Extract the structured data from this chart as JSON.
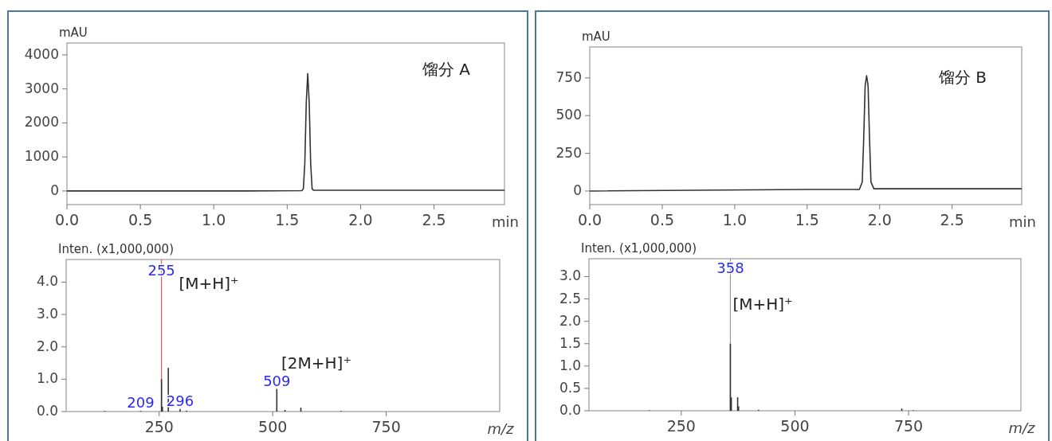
{
  "chart_data": [
    {
      "type": "line",
      "ylabel": "mAU",
      "xlabel": "min",
      "color": "#333333",
      "x": [
        0,
        1.2,
        1.6,
        1.61,
        1.62,
        1.63,
        1.64,
        1.65,
        1.66,
        1.67,
        1.68,
        2.4,
        2.98
      ],
      "values": [
        0,
        0,
        10,
        60,
        800,
        2600,
        3450,
        2600,
        800,
        60,
        20,
        20,
        20
      ],
      "xlim": [
        0,
        2.98
      ],
      "ylim": [
        -400,
        4350
      ],
      "xticks": [
        {
          "value": 0,
          "label": "0.0"
        },
        {
          "value": 0.5,
          "label": "0.5"
        },
        {
          "value": 1,
          "label": "1.0"
        },
        {
          "value": 1.5,
          "label": "1.5"
        },
        {
          "value": 2,
          "label": "2.0"
        },
        {
          "value": 2.5,
          "label": "2.5"
        }
      ],
      "yticks": [
        0,
        1000,
        2000,
        3000,
        4000
      ],
      "annotations": [
        "馏分 A"
      ]
    },
    {
      "type": "bar",
      "ylabel": "Inten. (x1,000,000)",
      "xlabel": "m/z",
      "color": "#333333",
      "x": [
        130,
        209,
        255,
        257,
        270,
        296,
        310,
        509,
        527,
        562,
        650
      ],
      "values": [
        0.02,
        0.02,
        1.0,
        0.15,
        1.35,
        0.08,
        0.03,
        0.7,
        0.05,
        0.12,
        0.02
      ],
      "xlim": [
        45,
        1000
      ],
      "ylim": [
        0,
        4.7
      ],
      "xticks": [
        250,
        500,
        750
      ],
      "yticks": [
        {
          "value": 0,
          "label": "0.0"
        },
        {
          "value": 1,
          "label": "1.0"
        },
        {
          "value": 2,
          "label": "2.0"
        },
        {
          "value": 3,
          "label": "3.0"
        },
        {
          "value": 4,
          "label": "4.0"
        }
      ],
      "ref_lines": [
        {
          "axis": "x",
          "value": 255,
          "color": "#e06060"
        }
      ],
      "annotations": [
        {
          "text": "255",
          "x": 255,
          "y": 4.1
        },
        "[M+H]⁺",
        {
          "text": "209",
          "x": 209,
          "y": 0.02
        },
        {
          "text": "296",
          "x": 296,
          "y": 0.08
        },
        {
          "text": "509",
          "x": 509,
          "y": 0.7
        },
        "[2M+H]⁺"
      ]
    },
    {
      "type": "line",
      "ylabel": "mAU",
      "xlabel": "min",
      "color": "#333333",
      "x": [
        0,
        1.5,
        1.86,
        1.88,
        1.89,
        1.9,
        1.91,
        1.92,
        1.93,
        1.94,
        1.96,
        2.3,
        2.98
      ],
      "values": [
        0,
        10,
        10,
        60,
        350,
        700,
        765,
        700,
        350,
        60,
        15,
        15,
        15
      ],
      "xlim": [
        0,
        2.98
      ],
      "ylim": [
        -90,
        955
      ],
      "xticks": [
        {
          "value": 0,
          "label": "0.0"
        },
        {
          "value": 0.5,
          "label": "0.5"
        },
        {
          "value": 1,
          "label": "1.0"
        },
        {
          "value": 1.5,
          "label": "1.5"
        },
        {
          "value": 2,
          "label": "2.0"
        },
        {
          "value": 2.5,
          "label": "2.5"
        }
      ],
      "yticks": [
        0,
        250,
        500,
        750
      ],
      "annotations": [
        "馏分 B"
      ]
    },
    {
      "type": "bar",
      "ylabel": "Inten. (x1,000,000)",
      "xlabel": "m/z",
      "color": "#333333",
      "x": [
        180,
        358,
        360,
        374,
        376,
        420,
        735,
        760
      ],
      "values": [
        0.01,
        1.5,
        0.3,
        0.3,
        0.1,
        0.02,
        0.05,
        0.01
      ],
      "xlim": [
        47,
        997
      ],
      "ylim": [
        0,
        3.4
      ],
      "xticks": [
        250,
        500,
        750
      ],
      "yticks": [
        {
          "value": 0,
          "label": "0.0"
        },
        {
          "value": 0.5,
          "label": "0.5"
        },
        {
          "value": 1,
          "label": "1.0"
        },
        {
          "value": 1.5,
          "label": "1.5"
        },
        {
          "value": 2,
          "label": "2.0"
        },
        {
          "value": 2.5,
          "label": "2.5"
        },
        {
          "value": 3,
          "label": "3.0"
        }
      ],
      "ref_lines": [
        {
          "axis": "x",
          "value": 358,
          "color": "#999999"
        }
      ],
      "annotations": [
        {
          "text": "358",
          "x": 358,
          "y": 3.0
        },
        "[M+H]⁺"
      ]
    }
  ]
}
